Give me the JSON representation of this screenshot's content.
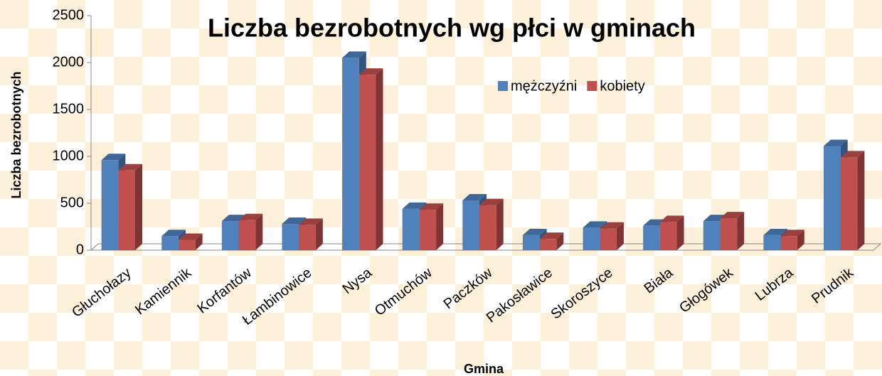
{
  "chart_data": {
    "type": "bar3d",
    "title": "Liczba bezrobotnych wg płci w gminach",
    "x_label": "Gmina",
    "y_label": "Liczba bezrobotnych",
    "categories": [
      "Głuchołazy",
      "Kamiennik",
      "Korfantów",
      "Łambinowice",
      "Nysa",
      "Otmuchów",
      "Paczków",
      "Pakosławice",
      "Skoroszyce",
      "Biała",
      "Głogówek",
      "Lubrza",
      "Prudnik"
    ],
    "series": [
      {
        "name": "mężczyźni",
        "color": "#4f81bd",
        "values": [
          960,
          150,
          310,
          280,
          2050,
          440,
          530,
          160,
          240,
          260,
          310,
          160,
          1110
        ]
      },
      {
        "name": "kobiety",
        "color": "#c0504d",
        "values": [
          850,
          110,
          320,
          270,
          1870,
          430,
          480,
          120,
          230,
          300,
          340,
          150,
          990
        ]
      }
    ],
    "ylim": [
      0,
      2500
    ],
    "yticks": [
      0,
      500,
      1000,
      1500,
      2000,
      2500
    ],
    "legend": "top-center"
  }
}
